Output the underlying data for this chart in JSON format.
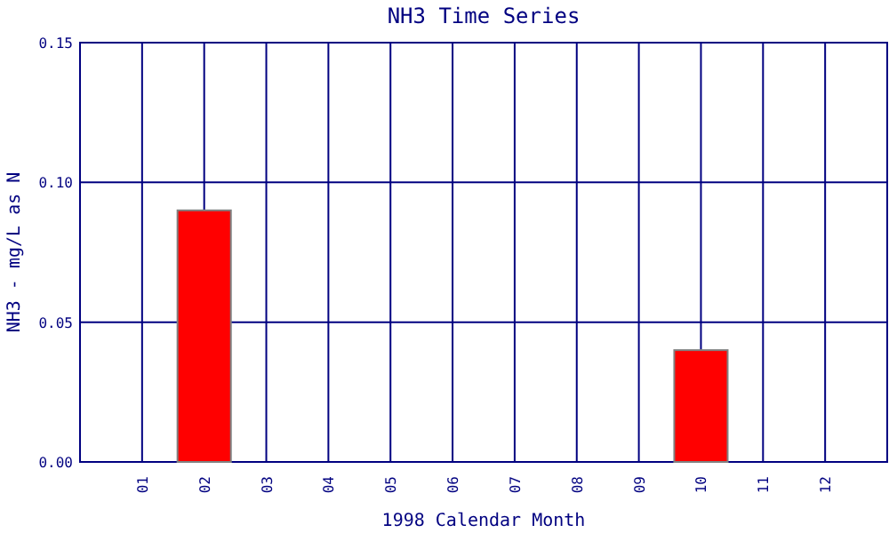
{
  "chart_data": {
    "type": "bar",
    "title": "NH3 Time Series",
    "xlabel": "1998 Calendar Month",
    "ylabel": "NH3 - mg/L as N",
    "categories": [
      "01",
      "02",
      "03",
      "04",
      "05",
      "06",
      "07",
      "08",
      "09",
      "10",
      "11",
      "12"
    ],
    "values": [
      0,
      0.09,
      0,
      0,
      0,
      0,
      0,
      0,
      0,
      0.04,
      0,
      0
    ],
    "color": "#ff0000",
    "ylim": [
      0,
      0.15
    ],
    "yticks": [
      {
        "value": 0,
        "label": "0.00"
      },
      {
        "value": 0.05,
        "label": "0.05"
      },
      {
        "value": 0.1,
        "label": "0.10"
      },
      {
        "value": 0.15,
        "label": "0.15"
      }
    ],
    "grid": true
  }
}
